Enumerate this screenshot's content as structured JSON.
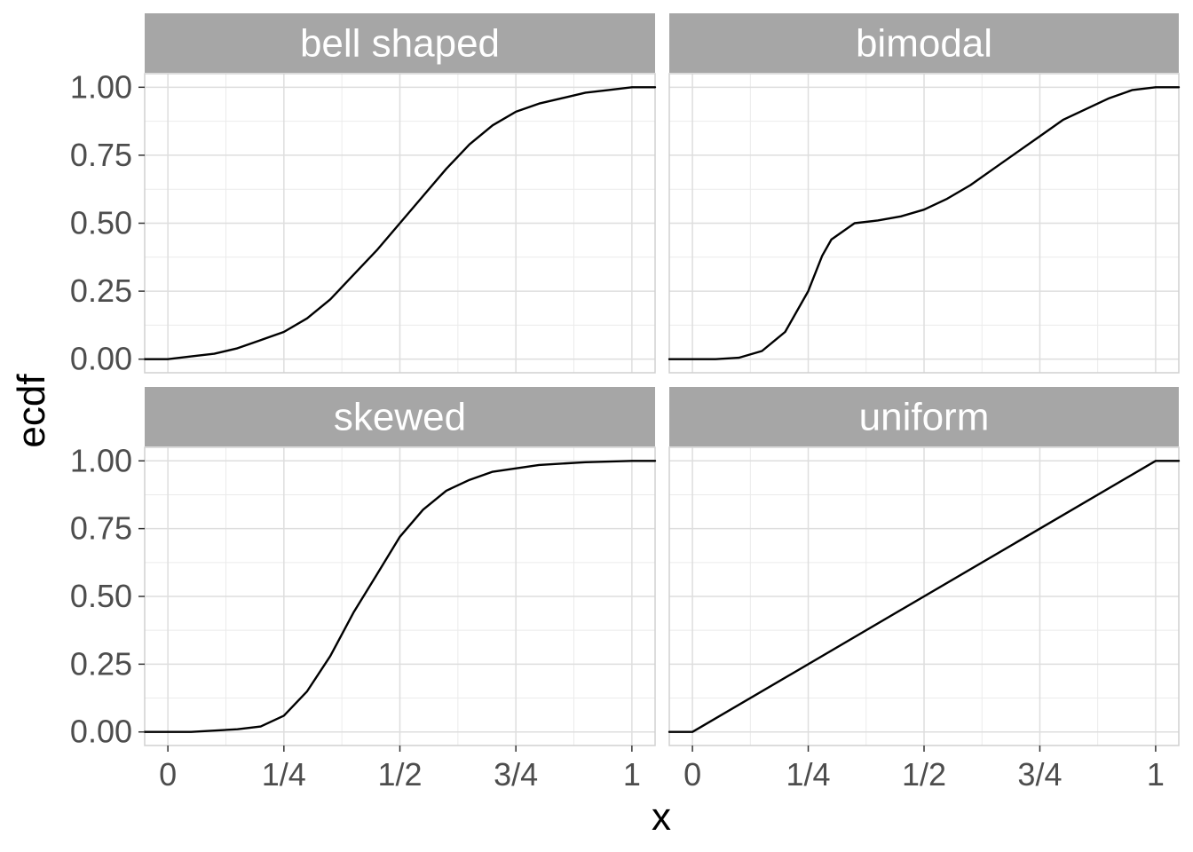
{
  "chart_data": {
    "type": "line",
    "layout": "facet-grid 2x2",
    "xlabel": "x",
    "ylabel": "ecdf",
    "xlim": [
      -0.05,
      1.05
    ],
    "ylim": [
      -0.05,
      1.05
    ],
    "x_ticks": [
      {
        "value": 0,
        "label": "0"
      },
      {
        "value": 0.25,
        "label": "1/4"
      },
      {
        "value": 0.5,
        "label": "1/2"
      },
      {
        "value": 0.75,
        "label": "3/4"
      },
      {
        "value": 1,
        "label": "1"
      }
    ],
    "y_ticks": [
      {
        "value": 0,
        "label": "0.00"
      },
      {
        "value": 0.25,
        "label": "0.25"
      },
      {
        "value": 0.5,
        "label": "0.50"
      },
      {
        "value": 0.75,
        "label": "0.75"
      },
      {
        "value": 1,
        "label": "1.00"
      }
    ],
    "grid": true,
    "line_color": "#000000",
    "panels": [
      {
        "title": "bell shaped",
        "points": [
          [
            -0.05,
            0
          ],
          [
            0,
            0
          ],
          [
            0.05,
            0.01
          ],
          [
            0.1,
            0.02
          ],
          [
            0.15,
            0.04
          ],
          [
            0.2,
            0.07
          ],
          [
            0.25,
            0.1
          ],
          [
            0.3,
            0.15
          ],
          [
            0.35,
            0.22
          ],
          [
            0.4,
            0.31
          ],
          [
            0.45,
            0.4
          ],
          [
            0.5,
            0.5
          ],
          [
            0.55,
            0.6
          ],
          [
            0.6,
            0.7
          ],
          [
            0.65,
            0.79
          ],
          [
            0.7,
            0.86
          ],
          [
            0.75,
            0.91
          ],
          [
            0.8,
            0.94
          ],
          [
            0.85,
            0.96
          ],
          [
            0.9,
            0.98
          ],
          [
            0.95,
            0.99
          ],
          [
            1,
            1
          ],
          [
            1.05,
            1
          ]
        ]
      },
      {
        "title": "bimodal",
        "points": [
          [
            -0.05,
            0
          ],
          [
            0.05,
            0
          ],
          [
            0.1,
            0.005
          ],
          [
            0.15,
            0.03
          ],
          [
            0.2,
            0.1
          ],
          [
            0.25,
            0.25
          ],
          [
            0.28,
            0.38
          ],
          [
            0.3,
            0.44
          ],
          [
            0.35,
            0.5
          ],
          [
            0.4,
            0.51
          ],
          [
            0.45,
            0.525
          ],
          [
            0.5,
            0.55
          ],
          [
            0.55,
            0.59
          ],
          [
            0.6,
            0.64
          ],
          [
            0.65,
            0.7
          ],
          [
            0.7,
            0.76
          ],
          [
            0.75,
            0.82
          ],
          [
            0.8,
            0.88
          ],
          [
            0.85,
            0.92
          ],
          [
            0.9,
            0.96
          ],
          [
            0.95,
            0.99
          ],
          [
            1,
            1
          ],
          [
            1.05,
            1
          ]
        ]
      },
      {
        "title": "skewed",
        "points": [
          [
            -0.05,
            0
          ],
          [
            0.05,
            0
          ],
          [
            0.15,
            0.01
          ],
          [
            0.2,
            0.02
          ],
          [
            0.25,
            0.06
          ],
          [
            0.3,
            0.15
          ],
          [
            0.35,
            0.28
          ],
          [
            0.4,
            0.44
          ],
          [
            0.45,
            0.58
          ],
          [
            0.5,
            0.72
          ],
          [
            0.55,
            0.82
          ],
          [
            0.6,
            0.89
          ],
          [
            0.65,
            0.93
          ],
          [
            0.7,
            0.96
          ],
          [
            0.8,
            0.985
          ],
          [
            0.9,
            0.995
          ],
          [
            1,
            1
          ],
          [
            1.05,
            1
          ]
        ]
      },
      {
        "title": "uniform",
        "points": [
          [
            -0.05,
            0
          ],
          [
            0,
            0
          ],
          [
            1,
            1
          ],
          [
            1.05,
            1
          ]
        ]
      }
    ]
  }
}
